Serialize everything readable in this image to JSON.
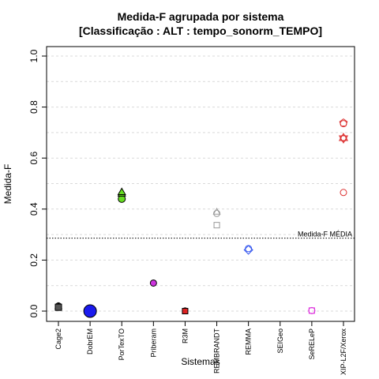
{
  "chart_data": {
    "type": "scatter",
    "title": "Medida-F agrupada por sistema",
    "subtitle": "[Classificação : ALT : tempo_sonorm_TEMPO]",
    "xlabel": "Sistemas",
    "ylabel": "Medida-F",
    "ylim": [
      0,
      1
    ],
    "yticks": [
      "0.0",
      "0.2",
      "0.4",
      "0.6",
      "0.8",
      "1.0"
    ],
    "grid": true,
    "categories": [
      "Cage2",
      "DobrEM",
      "PorTexTO",
      "Priberam",
      "R3M",
      "REMBRANDT",
      "REMMA",
      "SEIGeo",
      "SeRELeP",
      "XIP-L2F/Xerox"
    ],
    "reference_line": {
      "value": 0.286,
      "label": "Medida-F MÉDIA"
    },
    "points": [
      {
        "system": "Cage2",
        "y": 0.02,
        "shape": "circle",
        "color": "#555555",
        "filled": true,
        "size": 4
      },
      {
        "system": "Cage2",
        "y": 0.02,
        "shape": "triangle",
        "color": "#555555",
        "filled": true,
        "size": 4
      },
      {
        "system": "Cage2",
        "y": 0.015,
        "shape": "square",
        "color": "#555555",
        "filled": true,
        "size": 4
      },
      {
        "system": "DobrEM",
        "y": 0.0,
        "shape": "circle",
        "color": "#1a1aee",
        "filled": true,
        "size": 8
      },
      {
        "system": "PorTexTO",
        "y": 0.44,
        "shape": "circle",
        "color": "#66dd22",
        "filled": true,
        "size": 4.5
      },
      {
        "system": "PorTexTO",
        "y": 0.462,
        "shape": "triangle",
        "color": "#66dd22",
        "filled": true,
        "size": 4.5
      },
      {
        "system": "PorTexTO",
        "y": 0.468,
        "shape": "triangle",
        "color": "#66dd22",
        "filled": true,
        "size": 4.5
      },
      {
        "system": "Priberam",
        "y": 0.11,
        "shape": "circle",
        "color": "#cc33dd",
        "filled": true,
        "size": 4
      },
      {
        "system": "R3M",
        "y": 0.002,
        "shape": "circle",
        "color": "#dd2222",
        "filled": true,
        "size": 3.5
      },
      {
        "system": "R3M",
        "y": 0.0,
        "shape": "square",
        "color": "#dd2222",
        "filled": true,
        "size": 3.5
      },
      {
        "system": "REMBRANDT",
        "y": 0.39,
        "shape": "triangle",
        "color": "#999999",
        "filled": false,
        "size": 4
      },
      {
        "system": "REMBRANDT",
        "y": 0.383,
        "shape": "circle",
        "color": "#999999",
        "filled": false,
        "size": 4
      },
      {
        "system": "REMBRANDT",
        "y": 0.337,
        "shape": "square",
        "color": "#999999",
        "filled": false,
        "size": 3.5
      },
      {
        "system": "REMMA",
        "y": 0.245,
        "shape": "circle",
        "color": "#3355ee",
        "filled": false,
        "size": 4
      },
      {
        "system": "REMMA",
        "y": 0.24,
        "shape": "diamond",
        "color": "#3355ee",
        "filled": false,
        "size": 4.5
      },
      {
        "system": "SeRELeP",
        "y": 0.002,
        "shape": "circle",
        "color": "#dd33dd",
        "filled": false,
        "size": 4
      },
      {
        "system": "SeRELeP",
        "y": 0.002,
        "shape": "square",
        "color": "#dd33dd",
        "filled": false,
        "size": 3.5
      },
      {
        "system": "XIP-L2F/Xerox",
        "y": 0.738,
        "shape": "pentagon",
        "color": "#dd3333",
        "filled": false,
        "size": 5
      },
      {
        "system": "XIP-L2F/Xerox",
        "y": 0.735,
        "shape": "circle",
        "color": "#dd3333",
        "filled": false,
        "size": 4
      },
      {
        "system": "XIP-L2F/Xerox",
        "y": 0.678,
        "shape": "star6",
        "color": "#dd3333",
        "filled": false,
        "size": 6
      },
      {
        "system": "XIP-L2F/Xerox",
        "y": 0.678,
        "shape": "circle",
        "color": "#dd3333",
        "filled": false,
        "size": 4
      },
      {
        "system": "XIP-L2F/Xerox",
        "y": 0.465,
        "shape": "circle",
        "color": "#dd3333",
        "filled": false,
        "size": 4
      }
    ]
  }
}
